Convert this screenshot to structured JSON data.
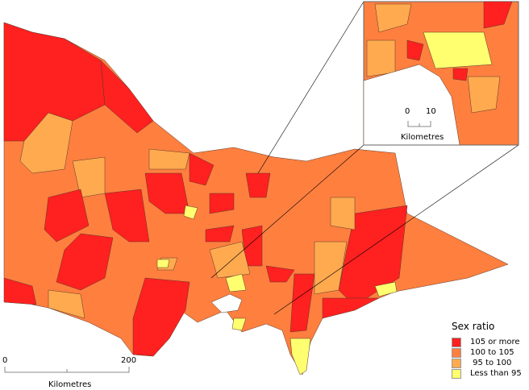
{
  "legend": {
    "title": "Sex ratio",
    "items": [
      {
        "label": "105 or more",
        "color": "#ff2020"
      },
      {
        "label": "100 to 105",
        "color": "#ff7f3f"
      },
      {
        "label": " 95 to 100",
        "color": "#ffaa4f"
      },
      {
        "label": "Less than 95",
        "color": "#ffff70"
      }
    ]
  },
  "main_scale": {
    "start": "0",
    "end": "200",
    "unit": "Kilometres"
  },
  "inset_scale": {
    "start": "0",
    "end": "10",
    "unit": "Kilometres"
  }
}
